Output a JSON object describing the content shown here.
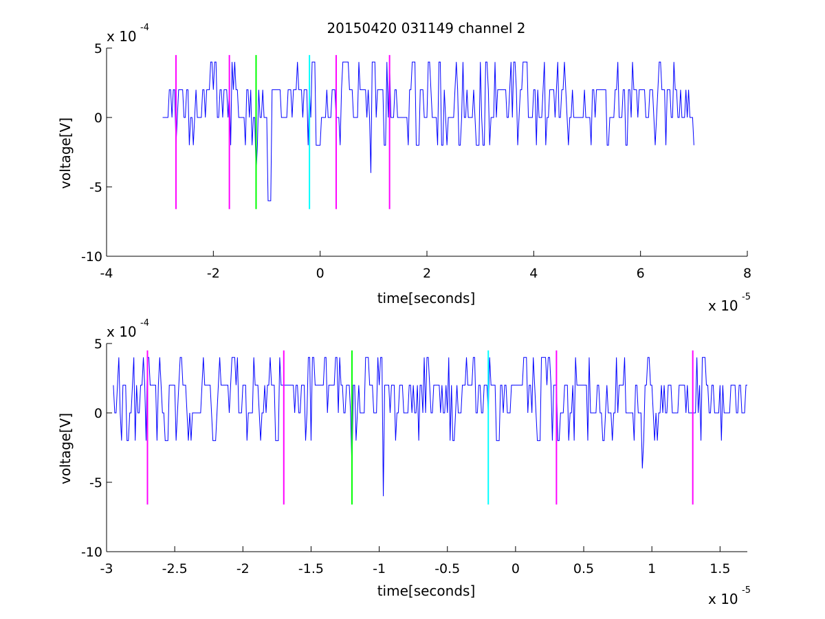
{
  "title": "20150420 031149 channel 2",
  "colors": {
    "signal": "#0000ff",
    "magenta": "#ff00ff",
    "green": "#00ff00",
    "cyan": "#00ffff",
    "axis": "#000000",
    "background": "#ffffff"
  },
  "chart_data": [
    {
      "type": "line",
      "panel": "top",
      "title": "20150420 031149 channel 2",
      "xlabel": "time[seconds]",
      "ylabel": "voltage[V]",
      "x_exponent": {
        "base": "x 10",
        "power": "-5"
      },
      "y_exponent": {
        "base": "x 10",
        "power": "-4"
      },
      "xlim": [
        -4,
        8
      ],
      "ylim": [
        -10,
        5
      ],
      "xticks": [
        -4,
        -2,
        0,
        2,
        4,
        6,
        8
      ],
      "xtick_labels": [
        "-4",
        "-2",
        "0",
        "2",
        "4",
        "6",
        "8"
      ],
      "yticks": [
        -10,
        -5,
        0,
        5
      ],
      "ytick_labels": [
        "-10",
        "-5",
        "0",
        "5"
      ],
      "grid": false,
      "signal": {
        "x_start": -2.95,
        "x_end": 7.0,
        "sample_step": 0.025,
        "levels": [
          -2,
          0,
          2,
          4
        ],
        "min_spikes": [
          {
            "x": -1.2,
            "y": -4
          },
          {
            "x": -0.97,
            "y": -6
          },
          {
            "x": 0.95,
            "y": -4
          }
        ]
      },
      "markers": [
        {
          "x": -2.7,
          "color": "magenta",
          "ymin": -6.6,
          "ymax": 4.5
        },
        {
          "x": -1.7,
          "color": "magenta",
          "ymin": -6.6,
          "ymax": 4.5
        },
        {
          "x": -1.2,
          "color": "green",
          "ymin": -6.6,
          "ymax": 4.5
        },
        {
          "x": -0.2,
          "color": "cyan",
          "ymin": -6.6,
          "ymax": 4.5
        },
        {
          "x": 0.3,
          "color": "magenta",
          "ymin": -6.6,
          "ymax": 4.5
        },
        {
          "x": 1.3,
          "color": "magenta",
          "ymin": -6.6,
          "ymax": 4.5
        }
      ]
    },
    {
      "type": "line",
      "panel": "bottom",
      "xlabel": "time[seconds]",
      "ylabel": "voltage[V]",
      "x_exponent": {
        "base": "x 10",
        "power": "-5"
      },
      "y_exponent": {
        "base": "x 10",
        "power": "-4"
      },
      "xlim": [
        -3,
        1.7
      ],
      "ylim": [
        -10,
        5
      ],
      "xticks": [
        -3,
        -2.5,
        -2,
        -1.5,
        -1,
        -0.5,
        0,
        0.5,
        1,
        1.5
      ],
      "xtick_labels": [
        "-3",
        "-2.5",
        "-2",
        "-1.5",
        "-1",
        "-0.5",
        "0",
        "0.5",
        "1",
        "1.5"
      ],
      "yticks": [
        -10,
        -5,
        0,
        5
      ],
      "ytick_labels": [
        "-10",
        "-5",
        "0",
        "5"
      ],
      "grid": false,
      "signal": {
        "x_start": -2.95,
        "x_end": 1.7,
        "sample_step": 0.01,
        "levels": [
          -2,
          0,
          2,
          4
        ],
        "min_spikes": [
          {
            "x": -1.2,
            "y": -4
          },
          {
            "x": -0.97,
            "y": -6
          },
          {
            "x": 0.93,
            "y": -4
          }
        ]
      },
      "markers": [
        {
          "x": -2.7,
          "color": "magenta",
          "ymin": -6.6,
          "ymax": 4.5
        },
        {
          "x": -1.7,
          "color": "magenta",
          "ymin": -6.6,
          "ymax": 4.5
        },
        {
          "x": -1.2,
          "color": "green",
          "ymin": -6.6,
          "ymax": 4.5
        },
        {
          "x": -0.2,
          "color": "cyan",
          "ymin": -6.6,
          "ymax": 4.5
        },
        {
          "x": 0.3,
          "color": "magenta",
          "ymin": -6.6,
          "ymax": 4.5
        },
        {
          "x": 1.3,
          "color": "magenta",
          "ymin": -6.6,
          "ymax": 4.5
        }
      ]
    }
  ]
}
